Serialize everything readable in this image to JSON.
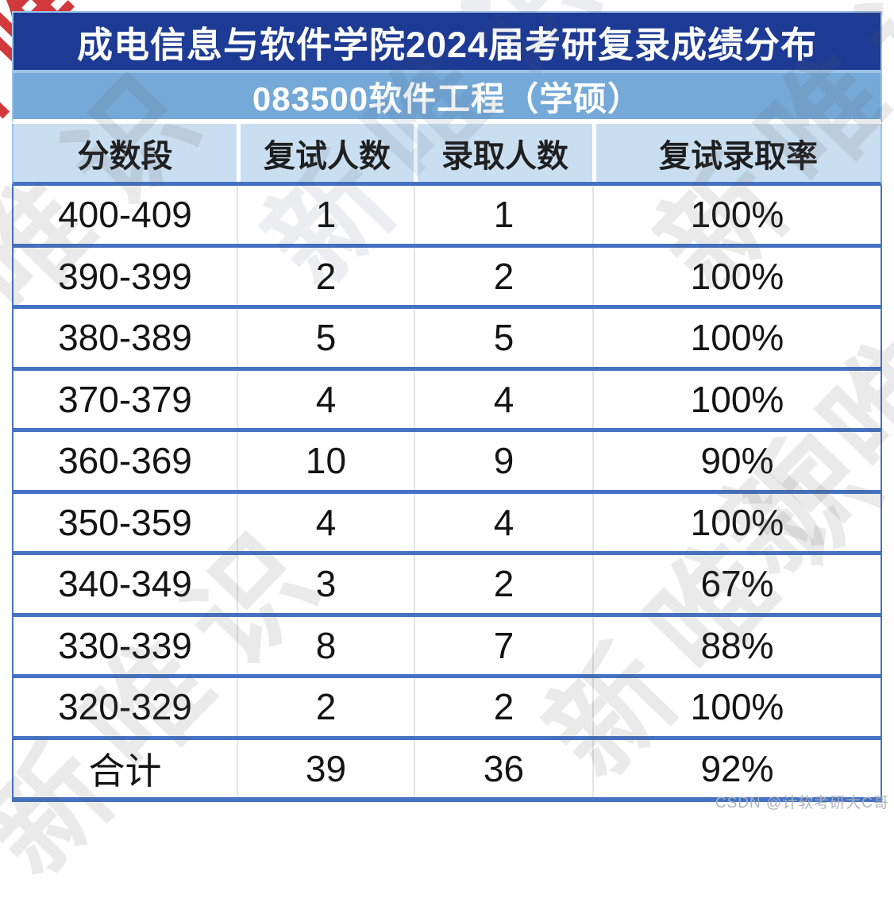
{
  "chart_data": {
    "type": "table",
    "title": "成电信息与软件学院2024届考研复录成绩分布",
    "subtitle": "083500软件工程（学硕）",
    "columns": [
      "分数段",
      "复试人数",
      "录取人数",
      "复试录取率"
    ],
    "rows": [
      [
        "400-409",
        "1",
        "1",
        "100%"
      ],
      [
        "390-399",
        "2",
        "2",
        "100%"
      ],
      [
        "380-389",
        "5",
        "5",
        "100%"
      ],
      [
        "370-379",
        "4",
        "4",
        "100%"
      ],
      [
        "360-369",
        "10",
        "9",
        "90%"
      ],
      [
        "350-359",
        "4",
        "4",
        "100%"
      ],
      [
        "340-349",
        "3",
        "2",
        "67%"
      ],
      [
        "330-339",
        "8",
        "7",
        "88%"
      ],
      [
        "320-329",
        "2",
        "2",
        "100%"
      ],
      [
        "合计",
        "39",
        "36",
        "92%"
      ]
    ]
  },
  "watermarks": {
    "brand_text": "新唯识",
    "credit": "CSDN @计软考研大C哥"
  },
  "colors": {
    "title_bar": "#1d3b94",
    "subtitle_bar": "#74a9d8",
    "header_bg": "#c9def1",
    "row_separator_blue": "#4472c4",
    "outer_border_light_blue": "#9cc3e6",
    "column_separator_gray": "#e3e3e7",
    "watermark_red": "#ce282d"
  }
}
